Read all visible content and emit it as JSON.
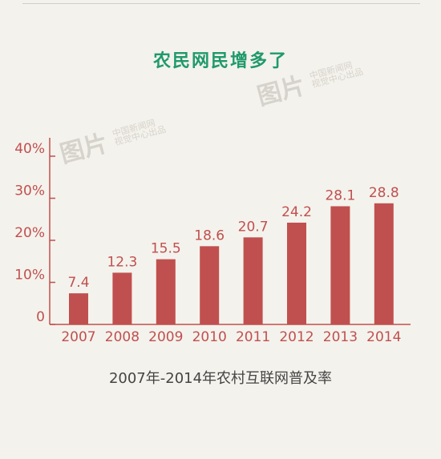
{
  "title": "农民网民增多了",
  "caption": "2007年-2014年农村互联网普及率",
  "watermark": {
    "logo": "图片",
    "line1": "中国新闻网",
    "line2": "视觉中心出品"
  },
  "colors": {
    "bar": "#c0504f",
    "axis": "#c0504f",
    "tick_label": "#c0504f",
    "value_label": "#c0504f",
    "title": "#1f9a6a",
    "background": "#f4f2ec"
  },
  "chart_data": {
    "type": "bar",
    "title": "农民网民增多了",
    "xlabel": "",
    "ylabel": "",
    "categories": [
      "2007",
      "2008",
      "2009",
      "2010",
      "2011",
      "2012",
      "2013",
      "2014"
    ],
    "values": [
      7.4,
      12.3,
      15.5,
      18.6,
      20.7,
      24.2,
      28.1,
      28.8
    ],
    "value_labels": [
      "7.4",
      "12.3",
      "15.5",
      "18.6",
      "20.7",
      "24.2",
      "28.1",
      "28.8"
    ],
    "ylim": [
      0,
      40
    ],
    "yticks": [
      0,
      10,
      20,
      30,
      40
    ],
    "ytick_labels": [
      "0",
      "10%",
      "20%",
      "30%",
      "40%"
    ],
    "grid": false,
    "legend": "none"
  }
}
